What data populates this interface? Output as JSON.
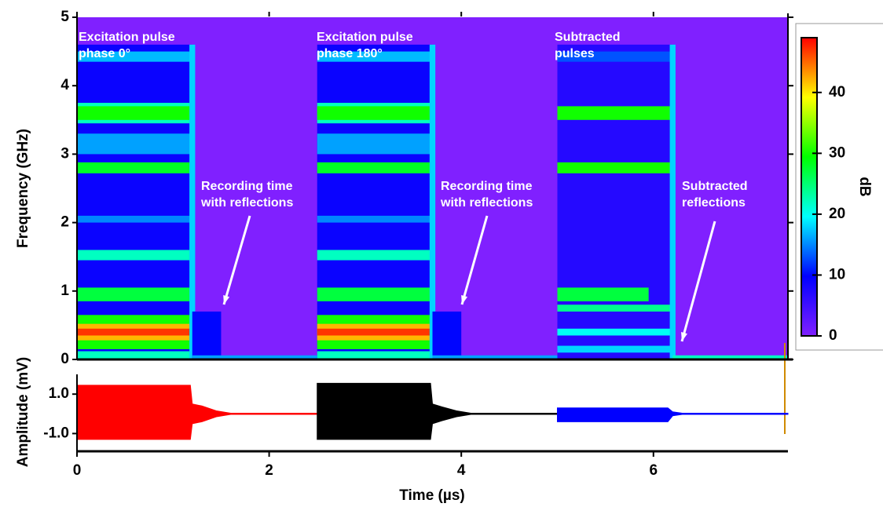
{
  "chart_data": [
    {
      "type": "heatmap",
      "ylabel": "Frequency (GHz)",
      "xlim": [
        0,
        7.4
      ],
      "ylim": [
        0,
        5
      ],
      "yticks": [
        0,
        1,
        2,
        3,
        4,
        5
      ],
      "background": 0,
      "regions": [
        [
          0,
          1.2,
          0,
          4.6,
          9
        ],
        [
          0,
          1.2,
          4.35,
          4.5,
          17
        ],
        [
          0,
          1.2,
          3.45,
          3.75,
          22
        ],
        [
          0,
          1.2,
          3.5,
          3.7,
          30
        ],
        [
          0,
          1.2,
          3.0,
          3.3,
          16
        ],
        [
          0,
          1.2,
          2.72,
          2.88,
          28
        ],
        [
          0,
          1.2,
          2.0,
          2.1,
          15
        ],
        [
          0,
          1.2,
          1.45,
          1.6,
          22
        ],
        [
          0,
          1.2,
          0.85,
          1.05,
          27
        ],
        [
          0,
          1.2,
          0.15,
          0.65,
          30
        ],
        [
          0,
          1.2,
          0.28,
          0.52,
          42
        ],
        [
          0,
          1.2,
          0.35,
          0.45,
          47
        ],
        [
          0,
          1.2,
          0,
          0.12,
          22
        ],
        [
          1.17,
          1.23,
          0,
          4.6,
          18
        ],
        [
          1.2,
          1.5,
          0,
          0.7,
          10
        ],
        [
          1.2,
          2.5,
          0,
          0.06,
          16
        ],
        [
          2.5,
          3.7,
          0,
          4.6,
          9
        ],
        [
          2.5,
          3.7,
          4.35,
          4.5,
          17
        ],
        [
          2.5,
          3.7,
          3.45,
          3.75,
          22
        ],
        [
          2.5,
          3.7,
          3.5,
          3.7,
          30
        ],
        [
          2.5,
          3.7,
          3.0,
          3.3,
          16
        ],
        [
          2.5,
          3.7,
          2.72,
          2.88,
          28
        ],
        [
          2.5,
          3.7,
          2.0,
          2.1,
          15
        ],
        [
          2.5,
          3.7,
          1.45,
          1.6,
          22
        ],
        [
          2.5,
          3.7,
          0.85,
          1.05,
          27
        ],
        [
          2.5,
          3.7,
          0.15,
          0.65,
          30
        ],
        [
          2.5,
          3.7,
          0.28,
          0.52,
          42
        ],
        [
          2.5,
          3.7,
          0.35,
          0.45,
          47
        ],
        [
          2.5,
          3.7,
          0,
          0.12,
          22
        ],
        [
          3.67,
          3.73,
          0,
          4.6,
          18
        ],
        [
          3.7,
          4.0,
          0,
          0.7,
          10
        ],
        [
          3.7,
          5.0,
          0,
          0.06,
          16
        ],
        [
          5.0,
          6.2,
          0,
          4.6,
          7
        ],
        [
          5.0,
          6.2,
          4.35,
          4.5,
          13
        ],
        [
          5.0,
          6.2,
          3.5,
          3.7,
          30
        ],
        [
          5.0,
          6.2,
          2.72,
          2.88,
          30
        ],
        [
          5.0,
          5.95,
          0.85,
          1.05,
          27
        ],
        [
          5.0,
          6.2,
          0.7,
          0.8,
          24
        ],
        [
          5.0,
          6.2,
          0.35,
          0.45,
          20
        ],
        [
          5.0,
          6.2,
          0.1,
          0.2,
          18
        ],
        [
          6.17,
          6.23,
          0,
          4.6,
          18
        ],
        [
          6.2,
          7.4,
          0,
          0.06,
          22
        ]
      ],
      "colorbar": {
        "label": "dB",
        "lim": [
          0,
          49
        ],
        "ticks": [
          0,
          10,
          20,
          30,
          40
        ],
        "colorscale": [
          "#8020ff",
          "#0000ff",
          "#00ffff",
          "#00ff00",
          "#ffff00",
          "#ff0000"
        ]
      },
      "annotations": [
        [
          "Excitation pulse",
          "phase 0°"
        ],
        [
          "Excitation pulse",
          "phase 180°"
        ],
        [
          "Subtracted",
          " pulses"
        ],
        [
          "Recording time",
          "with reflections"
        ],
        [
          "Recording time",
          "with reflections"
        ],
        [
          "Subtracted",
          "reflections"
        ]
      ]
    },
    {
      "type": "band",
      "xlabel": "Time (µs)",
      "ylabel": "Amplitude (mV)",
      "xlim": [
        0,
        7.4
      ],
      "ylim": [
        -1.9,
        2.6
      ],
      "xticks": [
        0,
        2,
        4,
        6
      ],
      "yticks": [
        {
          "value": 1,
          "label": "1.0"
        },
        {
          "value": -1,
          "label": "-1.0"
        }
      ],
      "series": [
        {
          "color": "#ff0000",
          "x": [
            0,
            1.18,
            1.2,
            1.3,
            1.45,
            1.6,
            2.5
          ],
          "upper": [
            1.45,
            1.45,
            0.5,
            0.4,
            0.15,
            0.03,
            0.03
          ],
          "lower": [
            -1.3,
            -1.3,
            -0.5,
            -0.4,
            -0.15,
            -0.03,
            -0.03
          ]
        },
        {
          "color": "#000000",
          "x": [
            2.5,
            3.68,
            3.7,
            3.8,
            3.95,
            4.1,
            5.0
          ],
          "upper": [
            1.55,
            1.55,
            0.5,
            0.35,
            0.15,
            0.03,
            0.03
          ],
          "lower": [
            -1.3,
            -1.3,
            -0.5,
            -0.35,
            -0.15,
            -0.03,
            -0.03
          ]
        },
        {
          "color": "#0000ff",
          "x": [
            5.0,
            6.15,
            6.2,
            6.3,
            7.4
          ],
          "upper": [
            0.3,
            0.3,
            0.1,
            0.03,
            0.03
          ],
          "lower": [
            -0.4,
            -0.4,
            -0.1,
            -0.03,
            -0.03
          ]
        }
      ]
    }
  ]
}
